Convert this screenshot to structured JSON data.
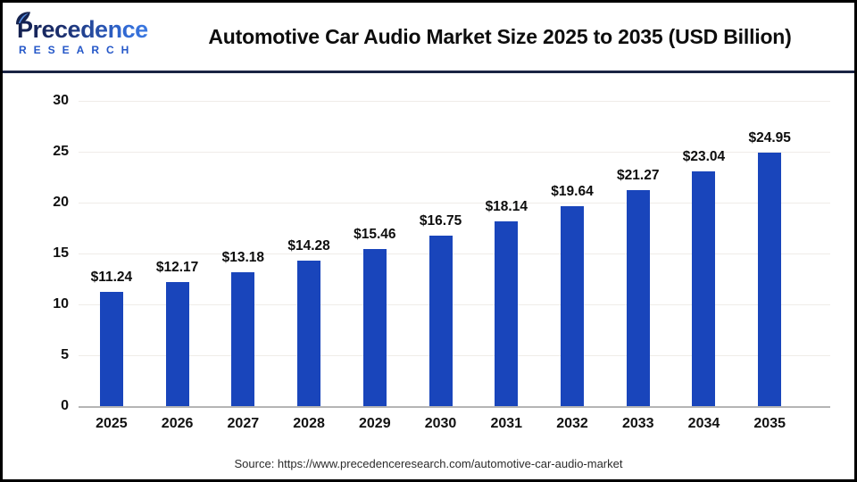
{
  "logo": {
    "brand": "Precedence",
    "subtitle": "RESEARCH"
  },
  "header": {
    "title": "Automotive Car Audio Market Size 2025 to 2035 (USD Billion)"
  },
  "footer": {
    "source": "Source: https://www.precedenceresearch.com/automotive-car-audio-market"
  },
  "colors": {
    "bar": "#1945bb",
    "divider": "#1a2444",
    "grid": "#efece8",
    "baseline": "#b5b5b5"
  },
  "chart_data": {
    "type": "bar",
    "title": "Automotive Car Audio Market Size 2025 to 2035 (USD Billion)",
    "categories": [
      "2025",
      "2026",
      "2027",
      "2028",
      "2029",
      "2030",
      "2031",
      "2032",
      "2033",
      "2034",
      "2035"
    ],
    "values": [
      11.24,
      12.17,
      13.18,
      14.28,
      15.46,
      16.75,
      18.14,
      19.64,
      21.27,
      23.04,
      24.95
    ],
    "value_labels": [
      "$11.24",
      "$12.17",
      "$13.18",
      "$14.28",
      "$15.46",
      "$16.75",
      "$18.14",
      "$19.64",
      "$21.27",
      "$23.04",
      "$24.95"
    ],
    "xlabel": "",
    "ylabel": "",
    "ylim": [
      0,
      30
    ],
    "yticks": [
      0,
      5,
      10,
      15,
      20,
      25,
      30
    ],
    "grid": "horizontal",
    "legend": "none",
    "bar_color": "#1945bb"
  }
}
